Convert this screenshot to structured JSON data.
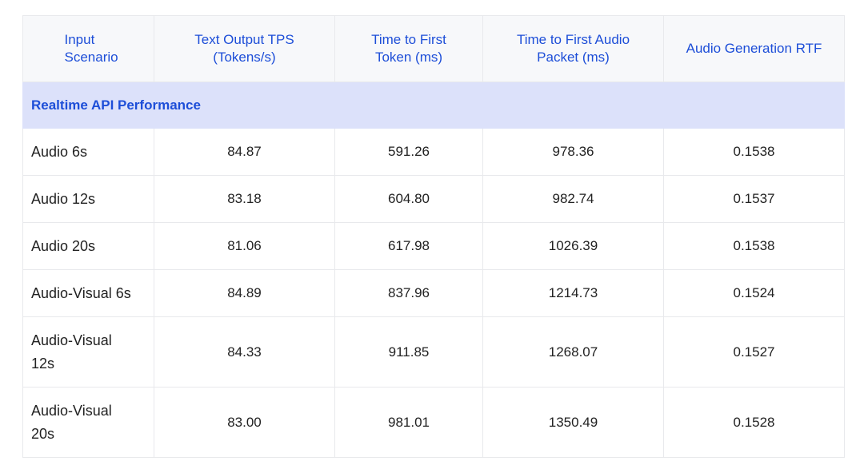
{
  "table": {
    "header": [
      "Input Scenario",
      "Text Output TPS (Tokens/s)",
      "Time to First Token (ms)",
      "Time to First Audio Packet (ms)",
      "Audio Generation RTF"
    ],
    "section": "Realtime API Performance",
    "rows": [
      [
        "Audio 6s",
        "84.87",
        "591.26",
        "978.36",
        "0.1538"
      ],
      [
        "Audio 12s",
        "83.18",
        "604.80",
        "982.74",
        "0.1537"
      ],
      [
        "Audio 20s",
        "81.06",
        "617.98",
        "1026.39",
        "0.1538"
      ],
      [
        "Audio-Visual 6s",
        "84.89",
        "837.96",
        "1214.73",
        "0.1524"
      ],
      [
        "Audio-Visual 12s",
        "84.33",
        "911.85",
        "1268.07",
        "0.1527"
      ],
      [
        "Audio-Visual 20s",
        "83.00",
        "981.01",
        "1350.49",
        "0.1528"
      ]
    ]
  }
}
